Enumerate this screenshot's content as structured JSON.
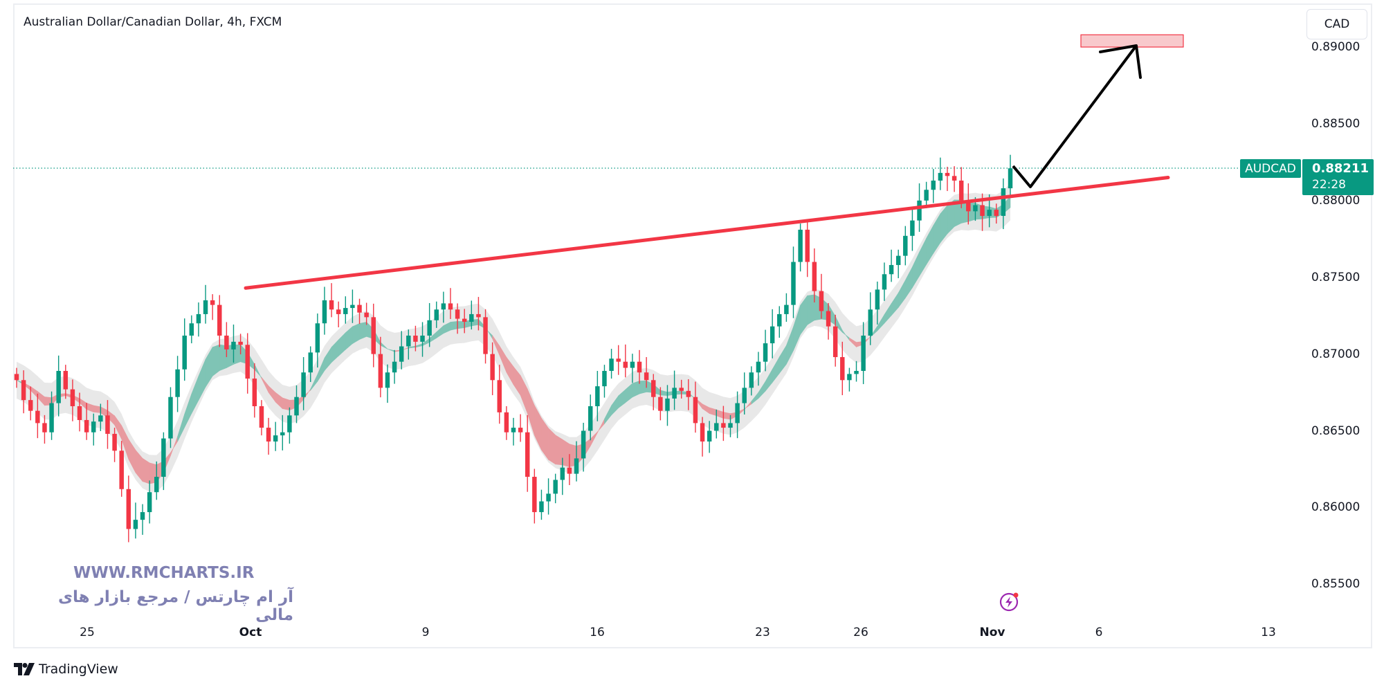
{
  "header": {
    "title": "Australian Dollar/Canadian Dollar, 4h, FXCM",
    "currency_button": "CAD"
  },
  "price_label": {
    "symbol": "AUDCAD",
    "price": "0.88211",
    "countdown": "22:28"
  },
  "watermark": {
    "url": "WWW.RMCHARTS.IR",
    "tagline": "آر ام چارتس / مرجع بازار های مالی"
  },
  "footer": {
    "brand": "TradingView"
  },
  "colors": {
    "up": "#089981",
    "down": "#f23645",
    "trendline": "#f23645",
    "arrow": "#000000",
    "target_box": "#f8c9cc",
    "ribbon_up": "#7fc4b5",
    "ribbon_down": "#e89a9f",
    "cloud": "#e4e4e4",
    "watermark": "#7f80b2"
  },
  "chart_data": {
    "type": "candlestick",
    "symbol": "AUDCAD",
    "timeframe": "4h",
    "ylim": [
      0.853,
      0.8915
    ],
    "yticks": [
      "0.89000",
      "0.88500",
      "0.88000",
      "0.87500",
      "0.87000",
      "0.86500",
      "0.86000",
      "0.85500"
    ],
    "xticks": [
      {
        "label": "25",
        "bold": false
      },
      {
        "label": "Oct",
        "bold": true
      },
      {
        "label": "9",
        "bold": false
      },
      {
        "label": "16",
        "bold": false
      },
      {
        "label": "23",
        "bold": false
      },
      {
        "label": "26",
        "bold": false
      },
      {
        "label": "Nov",
        "bold": true
      },
      {
        "label": "6",
        "bold": false
      },
      {
        "label": "13",
        "bold": false
      }
    ],
    "last_price": 0.88211,
    "closes": [
      0.8683,
      0.867,
      0.8663,
      0.8655,
      0.8649,
      0.8668,
      0.8689,
      0.8677,
      0.8666,
      0.8657,
      0.8649,
      0.8656,
      0.866,
      0.8648,
      0.8637,
      0.8612,
      0.8586,
      0.8592,
      0.8597,
      0.861,
      0.862,
      0.8645,
      0.8672,
      0.869,
      0.8712,
      0.872,
      0.8726,
      0.8735,
      0.8732,
      0.8712,
      0.8703,
      0.8708,
      0.8706,
      0.8684,
      0.8666,
      0.8652,
      0.8643,
      0.8647,
      0.8649,
      0.866,
      0.8672,
      0.8688,
      0.8701,
      0.872,
      0.8735,
      0.8729,
      0.8726,
      0.873,
      0.8732,
      0.8727,
      0.8724,
      0.87,
      0.8678,
      0.8688,
      0.8695,
      0.8705,
      0.8712,
      0.8708,
      0.8712,
      0.8722,
      0.8729,
      0.8733,
      0.8729,
      0.8723,
      0.8721,
      0.8726,
      0.8724,
      0.87,
      0.8683,
      0.8662,
      0.8649,
      0.8652,
      0.8649,
      0.862,
      0.8597,
      0.8604,
      0.8609,
      0.8618,
      0.8626,
      0.8622,
      0.8632,
      0.865,
      0.8666,
      0.8679,
      0.8689,
      0.8697,
      0.8695,
      0.8691,
      0.8695,
      0.8688,
      0.8683,
      0.8672,
      0.8663,
      0.8671,
      0.8678,
      0.8676,
      0.8672,
      0.8655,
      0.8643,
      0.865,
      0.8655,
      0.8652,
      0.8655,
      0.8668,
      0.8678,
      0.8688,
      0.8695,
      0.8707,
      0.8718,
      0.8726,
      0.8732,
      0.876,
      0.8781,
      0.876,
      0.8741,
      0.8728,
      0.8718,
      0.8698,
      0.8683,
      0.8687,
      0.8689,
      0.8712,
      0.8729,
      0.8742,
      0.8752,
      0.8758,
      0.8764,
      0.8777,
      0.8787,
      0.88,
      0.8807,
      0.8813,
      0.8818,
      0.8816,
      0.8813,
      0.88,
      0.8793,
      0.8797,
      0.879,
      0.8794,
      0.879,
      0.8808,
      0.8821
    ],
    "drawings": {
      "trendline": {
        "from": {
          "date": "Oct 2",
          "price": 0.8743
        },
        "to": {
          "date": "Nov 8",
          "price": 0.8815
        }
      },
      "target_zone": {
        "price_from": 0.89,
        "price_to": 0.8908
      }
    }
  }
}
